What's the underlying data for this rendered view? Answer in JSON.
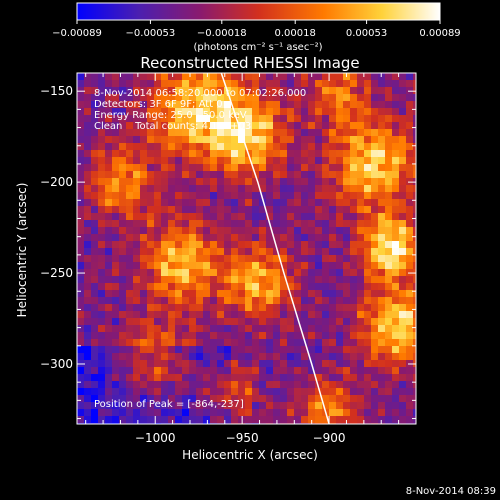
{
  "chart_data": {
    "type": "heatmap",
    "title": "Reconstructed RHESSI Image",
    "xlabel": "Heliocentric X (arcsec)",
    "ylabel": "Heliocentric Y (arcsec)",
    "xlim": [
      -1045,
      -850
    ],
    "ylim": [
      -333,
      -140
    ],
    "x_ticks": [
      -1000,
      -950,
      -900
    ],
    "x_tick_labels": [
      "−1000",
      "−950",
      "−900"
    ],
    "y_ticks": [
      -150,
      -200,
      -250,
      -300
    ],
    "y_tick_labels": [
      "−150",
      "−200",
      "−250",
      "−300"
    ],
    "colorbar": {
      "range": [
        -0.00089,
        0.00089
      ],
      "ticks": [
        -0.00089,
        -0.00053,
        -0.00018,
        0.00018,
        0.00053,
        0.00089
      ],
      "tick_labels": [
        "−0.00089",
        "−0.00053",
        "−0.00018",
        "0.00018",
        "0.00053",
        "0.00089"
      ],
      "unit": "(photons cm⁻² s⁻¹ asec⁻²)",
      "colors": [
        "#0000ff",
        "#4b1fb0",
        "#8a1a6e",
        "#d2301e",
        "#ff7a00",
        "#ffd23a",
        "#ffffff"
      ]
    },
    "info_lines": [
      "8-Nov-2014 06:58:20.000 to 07:02:26.000",
      "Detectors: 3F 6F 9F; Att 0",
      "Energy Range: 25.0 - 50.0 keV",
      "Clean    Total counts: 4.10E+03"
    ],
    "peak_label": "Position of Peak = [-864,-237]",
    "peak": [
      -864,
      -237
    ],
    "limb_curve": [
      [
        -962,
        -140
      ],
      [
        -941,
        -200
      ],
      [
        -926,
        -250
      ],
      [
        -910,
        -300
      ],
      [
        -900,
        -333
      ]
    ]
  },
  "footer_timestamp": "8-Nov-2014 08:39"
}
